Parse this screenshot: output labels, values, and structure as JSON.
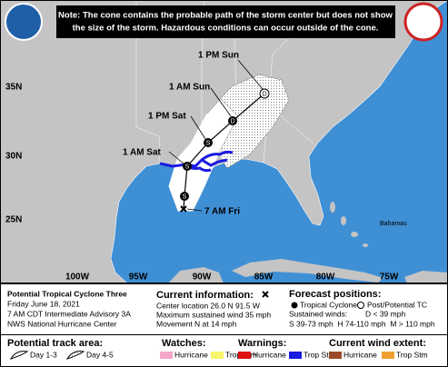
{
  "note": {
    "line1": "Note: The cone contains the probable path of the storm center but does not show",
    "line2": "the size of the storm. Hazardous conditions can occur outside of the cone."
  },
  "map": {
    "lat_labels": [
      "35N",
      "30N",
      "25N"
    ],
    "lon_labels": [
      "100W",
      "95W",
      "90W",
      "85W",
      "80W",
      "75W"
    ],
    "places": [
      "Bahamas"
    ],
    "forecast_times": [
      "1 PM Sun",
      "1 AM Sun",
      "1 PM Sat",
      "1 AM Sat",
      "7 AM Fri"
    ],
    "markers": [
      "D",
      "D",
      "S",
      "S",
      "S"
    ]
  },
  "storm": {
    "title": "Potential Tropical Cyclone Three",
    "date": "Friday June 18, 2021",
    "advisory": "7 AM CDT Intermediate Advisory 3A",
    "office": "NWS National Hurricane Center"
  },
  "current": {
    "heading": "Current information:",
    "location": "Center location 26.0 N 91.5 W",
    "wind": "Maximum sustained wind 35 mph",
    "movement": "Movement N at 14 mph"
  },
  "forecast": {
    "heading": "Forecast positions:",
    "tropical": "Tropical Cyclone",
    "post": "Post/Potential TC",
    "winds_heading": "Sustained winds:",
    "d": "D < 39 mph",
    "categories": "S 39-73 mph  H 74-110 mph  M > 110 mph"
  },
  "legend": {
    "track": {
      "heading": "Potential track area:",
      "items": [
        "Day 1-3",
        "Day 4-5"
      ]
    },
    "watches": {
      "heading": "Watches:",
      "items": [
        "Hurricane",
        "Trop Stm"
      ]
    },
    "warnings": {
      "heading": "Warnings:",
      "items": [
        "Hurricane",
        "Trop Stm"
      ]
    },
    "wind": {
      "heading": "Current wind extent:",
      "items": [
        "Hurricane",
        "Trop Stm"
      ]
    }
  }
}
